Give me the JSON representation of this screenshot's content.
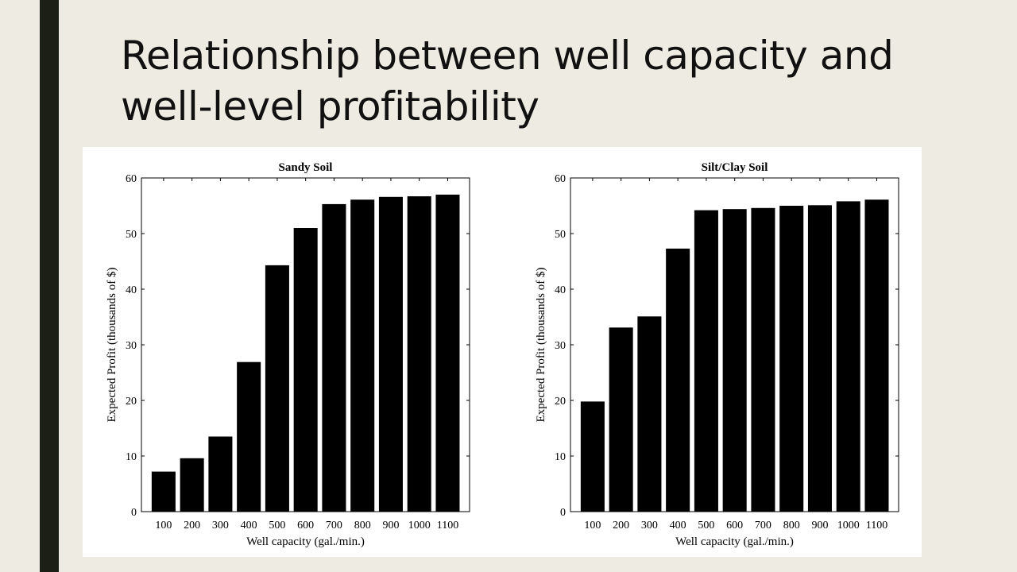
{
  "slide": {
    "title_line1": "Relationship between well capacity and",
    "title_line2": "well-level profitability",
    "bar_color": "#000000",
    "background": "#eeebe2",
    "accent_bar": "#1c1f16"
  },
  "chart_data": [
    {
      "type": "bar",
      "title": "Sandy Soil",
      "xlabel": "Well capacity (gal./min.)",
      "ylabel": "Expected Profit (thousands of $)",
      "categories": [
        "100",
        "200",
        "300",
        "400",
        "500",
        "600",
        "700",
        "800",
        "900",
        "1000",
        "1100"
      ],
      "values": [
        7.2,
        9.6,
        13.5,
        26.9,
        44.3,
        51.0,
        55.3,
        56.1,
        56.6,
        56.7,
        57.0
      ],
      "ylim": [
        0,
        60
      ],
      "yticks": [
        "0",
        "10",
        "20",
        "30",
        "40",
        "50",
        "60"
      ],
      "grid": false
    },
    {
      "type": "bar",
      "title": "Silt/Clay Soil",
      "xlabel": "Well capacity (gal./min.)",
      "ylabel": "Expected Profit (thousands of $)",
      "categories": [
        "100",
        "200",
        "300",
        "400",
        "500",
        "600",
        "700",
        "800",
        "900",
        "1000",
        "1100"
      ],
      "values": [
        19.8,
        33.1,
        35.1,
        47.3,
        54.2,
        54.4,
        54.6,
        55.0,
        55.1,
        55.8,
        56.1
      ],
      "ylim": [
        0,
        60
      ],
      "yticks": [
        "0",
        "10",
        "20",
        "30",
        "40",
        "50",
        "60"
      ],
      "grid": false
    }
  ]
}
